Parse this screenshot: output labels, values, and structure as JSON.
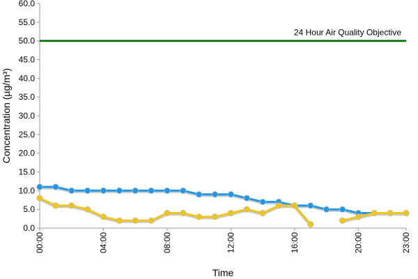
{
  "chart_data": {
    "type": "line",
    "title": "",
    "xlabel": "Time",
    "ylabel": "Concentration (µg/m³)",
    "ylim": [
      0,
      60
    ],
    "y_ticks": [
      "0.0",
      "5.0",
      "10.0",
      "15.0",
      "20.0",
      "25.0",
      "30.0",
      "35.0",
      "40.0",
      "45.0",
      "50.0",
      "55.0",
      "60.0"
    ],
    "x_tick_labels": [
      "00:00",
      "04:00",
      "08:00",
      "12:00",
      "16:00",
      "20:00",
      "23:00"
    ],
    "x_tick_hours": [
      0,
      4,
      8,
      12,
      16,
      20,
      23
    ],
    "x": [
      0,
      1,
      2,
      3,
      4,
      5,
      6,
      7,
      8,
      9,
      10,
      11,
      12,
      13,
      14,
      15,
      16,
      17,
      18,
      19,
      20,
      21,
      22,
      23
    ],
    "grid": false,
    "series": [
      {
        "color": "#2196e6",
        "values": [
          11,
          11,
          10,
          10,
          10,
          10,
          10,
          10,
          10,
          10,
          9,
          9,
          9,
          8,
          7,
          7,
          6,
          6,
          5,
          5,
          4,
          4,
          4,
          4
        ]
      },
      {
        "color": "#f0c419",
        "values": [
          8,
          6,
          6,
          5,
          3,
          2,
          2,
          2,
          4,
          4,
          3,
          3,
          4,
          5,
          4,
          6,
          6,
          1,
          null,
          2,
          3,
          4,
          4,
          4
        ]
      }
    ],
    "objective": {
      "value": 50,
      "label": "24 Hour Air Quality Objective",
      "color": "#1a7a1a"
    }
  }
}
